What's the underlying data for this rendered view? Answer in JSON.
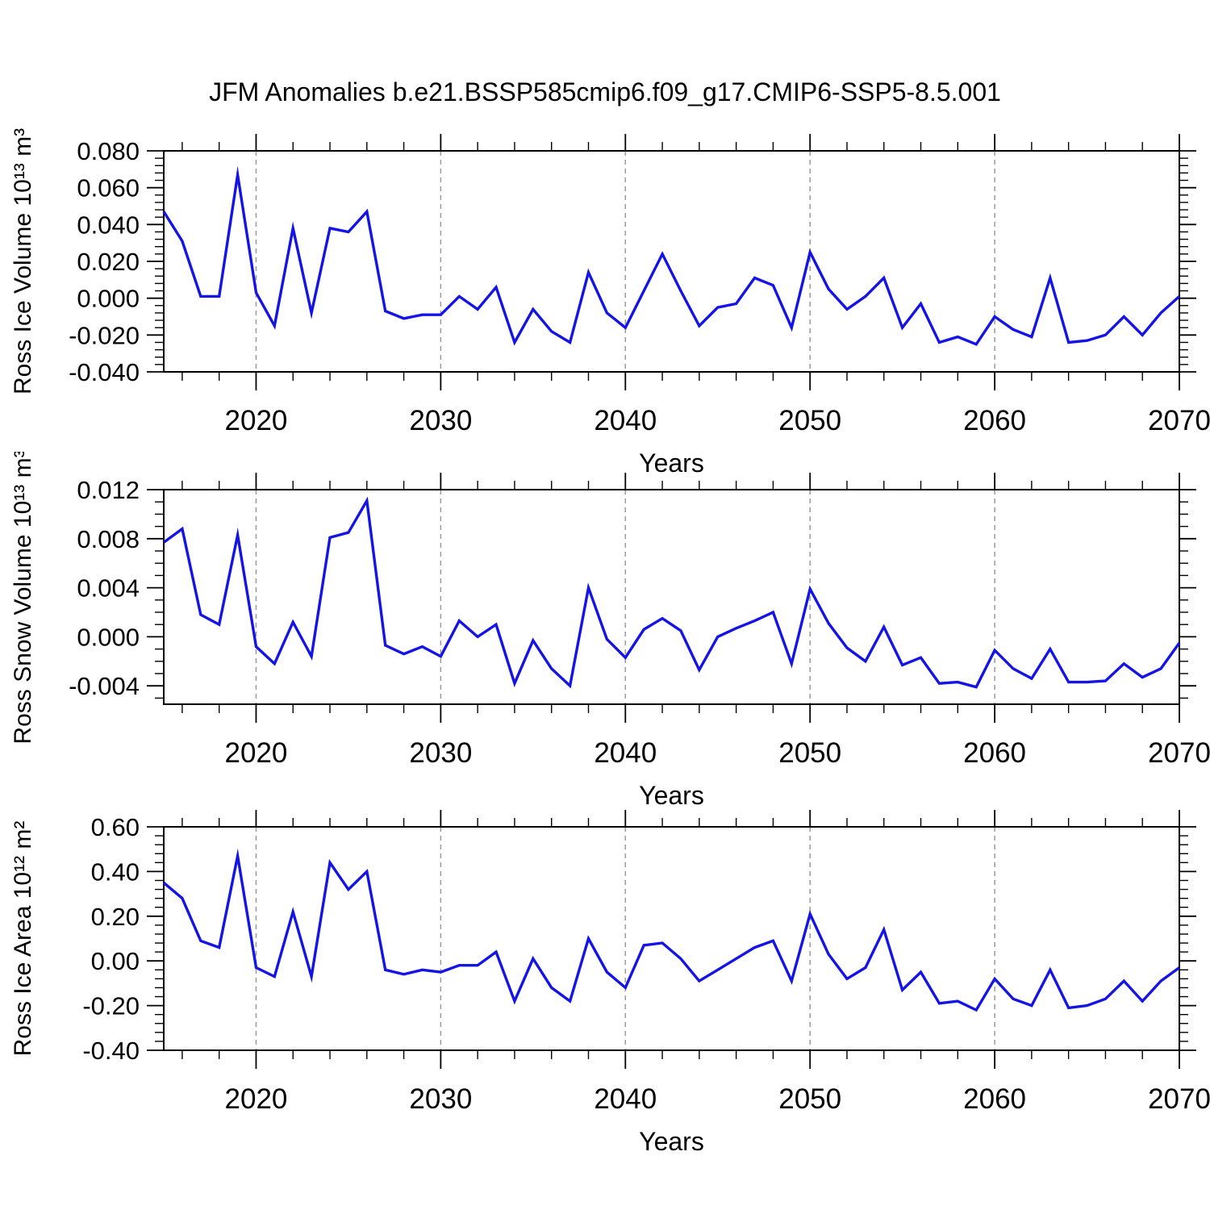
{
  "title": "JFM Anomalies b.e21.BSSP585cmip6.f09_g17.CMIP6-SSP5-8.5.001",
  "colors": {
    "line": "#1414e6",
    "grid": "#9a9a9a",
    "axis": "#000000"
  },
  "x_axis": {
    "label": "Years",
    "start": 2015,
    "end": 2070,
    "major_tick_labels": [
      "2020",
      "2030",
      "2040",
      "2050",
      "2060",
      "2070"
    ],
    "major_tick_values": [
      2020,
      2030,
      2040,
      2050,
      2060,
      2070
    ],
    "minor_tick_step": 2,
    "gridline_values": [
      2020,
      2030,
      2040,
      2050,
      2060
    ],
    "years": [
      2015,
      2016,
      2017,
      2018,
      2019,
      2020,
      2021,
      2022,
      2023,
      2024,
      2025,
      2026,
      2027,
      2028,
      2029,
      2030,
      2031,
      2032,
      2033,
      2034,
      2035,
      2036,
      2037,
      2038,
      2039,
      2040,
      2041,
      2042,
      2043,
      2044,
      2045,
      2046,
      2047,
      2048,
      2049,
      2050,
      2051,
      2052,
      2053,
      2054,
      2055,
      2056,
      2057,
      2058,
      2059,
      2060,
      2061,
      2062,
      2063,
      2064,
      2065,
      2066,
      2067,
      2068,
      2069,
      2070
    ]
  },
  "chart_data": [
    {
      "type": "line",
      "id": "ross-ice-volume",
      "ylabel": "Ross Ice Volume 10¹³ m³",
      "xlabel": "Years",
      "ylim": [
        -0.04,
        0.08
      ],
      "ytick_values": [
        0.08,
        0.06,
        0.04,
        0.02,
        0.0,
        -0.02,
        -0.04
      ],
      "ytick_labels": [
        "0.080",
        "0.060",
        "0.040",
        "0.020",
        "0.000",
        "-0.020",
        "-0.040"
      ],
      "y_minor_step": 0.004,
      "grid": "vertical-dashed",
      "legend": "none",
      "values": [
        0.047,
        0.031,
        0.001,
        0.001,
        0.067,
        0.003,
        -0.015,
        0.038,
        -0.008,
        0.038,
        0.036,
        0.047,
        -0.007,
        -0.011,
        -0.009,
        -0.009,
        0.001,
        -0.006,
        0.006,
        -0.024,
        -0.006,
        -0.018,
        -0.024,
        0.014,
        -0.008,
        -0.016,
        0.004,
        0.024,
        0.004,
        -0.015,
        -0.005,
        -0.003,
        0.011,
        0.007,
        -0.016,
        0.025,
        0.005,
        -0.006,
        0.001,
        0.011,
        -0.016,
        -0.003,
        -0.024,
        -0.021,
        -0.025,
        -0.01,
        -0.017,
        -0.021,
        0.011,
        -0.024,
        -0.023,
        -0.02,
        -0.01,
        -0.02,
        -0.008,
        0.001
      ]
    },
    {
      "type": "line",
      "id": "ross-snow-volume",
      "ylabel": "Ross Snow Volume 10¹³ m³",
      "xlabel": "Years",
      "ylim": [
        -0.0055,
        0.012
      ],
      "ytick_values": [
        0.012,
        0.008,
        0.004,
        0.0,
        -0.004
      ],
      "ytick_labels": [
        "0.012",
        "0.008",
        "0.004",
        "0.000",
        "-0.004"
      ],
      "y_minor_step": 0.001,
      "grid": "vertical-dashed",
      "legend": "none",
      "values": [
        0.0077,
        0.0088,
        0.0018,
        0.001,
        0.0083,
        -0.0008,
        -0.0022,
        0.0012,
        -0.0016,
        0.0081,
        0.0085,
        0.0111,
        -0.0007,
        -0.0014,
        -0.0008,
        -0.0016,
        0.0013,
        0.0,
        0.001,
        -0.0038,
        -0.0003,
        -0.0026,
        -0.004,
        0.004,
        -0.0002,
        -0.0017,
        0.0006,
        0.0015,
        0.0005,
        -0.0027,
        0.0,
        0.0007,
        0.0013,
        0.002,
        -0.0022,
        0.0039,
        0.0011,
        -0.0009,
        -0.002,
        0.0008,
        -0.0023,
        -0.0017,
        -0.0038,
        -0.0037,
        -0.0041,
        -0.0011,
        -0.0026,
        -0.0034,
        -0.001,
        -0.0037,
        -0.0037,
        -0.0036,
        -0.0022,
        -0.0033,
        -0.0026,
        -0.0005
      ]
    },
    {
      "type": "line",
      "id": "ross-ice-area",
      "ylabel": "Ross Ice Area 10¹² m²",
      "xlabel": "Years",
      "ylim": [
        -0.4,
        0.6
      ],
      "ytick_values": [
        0.6,
        0.4,
        0.2,
        0.0,
        -0.2,
        -0.4
      ],
      "ytick_labels": [
        "0.60",
        "0.40",
        "0.20",
        "0.00",
        "-0.20",
        "-0.40"
      ],
      "y_minor_step": 0.04,
      "grid": "vertical-dashed",
      "legend": "none",
      "values": [
        0.35,
        0.28,
        0.09,
        0.06,
        0.47,
        -0.03,
        -0.07,
        0.22,
        -0.07,
        0.44,
        0.32,
        0.4,
        -0.04,
        -0.06,
        -0.04,
        -0.05,
        -0.02,
        -0.02,
        0.04,
        -0.18,
        0.01,
        -0.12,
        -0.18,
        0.1,
        -0.05,
        -0.12,
        0.07,
        0.08,
        0.01,
        -0.09,
        -0.04,
        0.01,
        0.06,
        0.09,
        -0.09,
        0.21,
        0.03,
        -0.08,
        -0.03,
        0.14,
        -0.13,
        -0.05,
        -0.19,
        -0.18,
        -0.22,
        -0.08,
        -0.17,
        -0.2,
        -0.04,
        -0.21,
        -0.2,
        -0.17,
        -0.09,
        -0.18,
        -0.09,
        -0.03
      ]
    }
  ]
}
